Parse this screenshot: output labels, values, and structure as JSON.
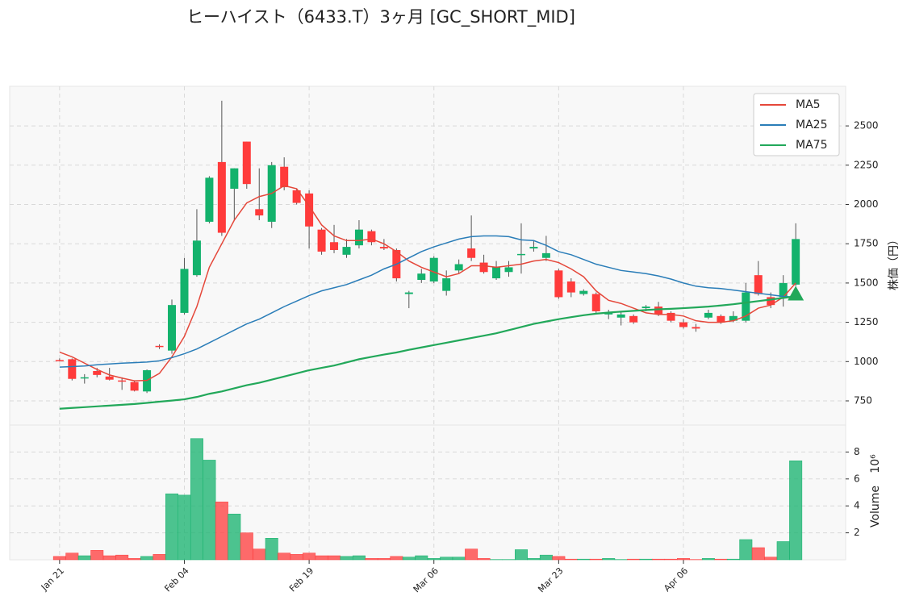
{
  "chart_data": {
    "type": "candlestick",
    "title": "ヒーハイスト（6433.T）3ヶ月 [GC_SHORT_MID]",
    "y_label": "株価（円）",
    "volume_label": "Volume",
    "volume_exponent": "10⁶",
    "xlim": [
      -4,
      63
    ],
    "xticks": [
      {
        "value": 0,
        "label": "Jan 21"
      },
      {
        "value": 10,
        "label": "Feb 04"
      },
      {
        "value": 20,
        "label": "Feb 19"
      },
      {
        "value": 30,
        "label": "Mar 06"
      },
      {
        "value": 40,
        "label": "Mar 23"
      },
      {
        "value": 50,
        "label": "Apr 06"
      }
    ],
    "ylim": [
      596,
      2752
    ],
    "yticks": [
      750,
      1000,
      1250,
      1500,
      1750,
      2000,
      2250,
      2500
    ],
    "volume_ylim": [
      0,
      10
    ],
    "volume_yticks": [
      2,
      4,
      6,
      8
    ],
    "grid": true,
    "up_color": "#13b26c",
    "down_color": "#ff3b3b",
    "legend_position": "upper right",
    "open": [
      1010,
      1015,
      895,
      940,
      905,
      880,
      870,
      810,
      1100,
      1070,
      1310,
      1550,
      1890,
      2270,
      2100,
      2400,
      1970,
      1890,
      2240,
      2090,
      2070,
      1840,
      1760,
      1680,
      1740,
      1830,
      1730,
      1710,
      1430,
      1520,
      1510,
      1450,
      1580,
      1720,
      1630,
      1530,
      1570,
      1680,
      1720,
      1660,
      1580,
      1510,
      1430,
      1430,
      1300,
      1280,
      1290,
      1340,
      1350,
      1310,
      1250,
      1220,
      1280,
      1290,
      1260,
      1260,
      1550,
      1410,
      1410,
      1490
    ],
    "high": [
      1020,
      1020,
      920,
      960,
      960,
      900,
      880,
      950,
      1110,
      1395,
      1660,
      1970,
      2180,
      2660,
      2230,
      2400,
      2230,
      2270,
      2300,
      2100,
      2090,
      1850,
      1870,
      1780,
      1900,
      1840,
      1780,
      1720,
      1450,
      1590,
      1670,
      1580,
      1650,
      1930,
      1680,
      1640,
      1640,
      1880,
      1770,
      1800,
      1590,
      1530,
      1460,
      1440,
      1330,
      1320,
      1300,
      1360,
      1380,
      1320,
      1270,
      1240,
      1330,
      1300,
      1320,
      1500,
      1640,
      1440,
      1550,
      1880
    ],
    "low": [
      1000,
      880,
      860,
      900,
      880,
      820,
      810,
      800,
      1080,
      1050,
      1300,
      1540,
      1880,
      1800,
      1900,
      2100,
      1900,
      1850,
      2090,
      2000,
      1720,
      1680,
      1690,
      1660,
      1720,
      1740,
      1710,
      1510,
      1340,
      1500,
      1500,
      1420,
      1560,
      1640,
      1560,
      1520,
      1540,
      1560,
      1700,
      1640,
      1400,
      1410,
      1420,
      1310,
      1270,
      1230,
      1240,
      1320,
      1290,
      1250,
      1210,
      1190,
      1270,
      1240,
      1250,
      1250,
      1420,
      1340,
      1350,
      1480
    ],
    "close": [
      1005,
      890,
      900,
      915,
      885,
      875,
      815,
      945,
      1095,
      1360,
      1590,
      1770,
      2170,
      1820,
      2230,
      2130,
      1930,
      2250,
      2110,
      2010,
      1860,
      1700,
      1710,
      1730,
      1840,
      1760,
      1720,
      1530,
      1440,
      1560,
      1660,
      1530,
      1620,
      1660,
      1570,
      1600,
      1600,
      1685,
      1730,
      1690,
      1410,
      1440,
      1450,
      1320,
      1310,
      1300,
      1250,
      1350,
      1300,
      1260,
      1220,
      1210,
      1310,
      1250,
      1290,
      1440,
      1430,
      1360,
      1500,
      1780
    ],
    "volume": [
      0.25,
      0.5,
      0.3,
      0.7,
      0.3,
      0.35,
      0.1,
      0.25,
      0.4,
      4.9,
      4.8,
      9.0,
      7.4,
      4.3,
      3.4,
      2.0,
      0.8,
      1.6,
      0.5,
      0.4,
      0.5,
      0.3,
      0.3,
      0.25,
      0.3,
      0.1,
      0.1,
      0.25,
      0.2,
      0.3,
      0.1,
      0.2,
      0.2,
      0.8,
      0.1,
      0.02,
      0.02,
      0.75,
      0.1,
      0.35,
      0.25,
      0.05,
      0.05,
      0.05,
      0.1,
      0.02,
      0.05,
      0.05,
      0.05,
      0.05,
      0.1,
      0.02,
      0.1,
      0.05,
      0.05,
      1.5,
      0.9,
      0.2,
      1.35,
      7.35
    ],
    "series": [
      {
        "name": "MA5",
        "color": "#e5473a",
        "values": [
          1060,
          1030,
          990,
          950,
          915,
          895,
          878,
          880,
          925,
          1030,
          1160,
          1350,
          1600,
          1750,
          1900,
          2010,
          2050,
          2070,
          2120,
          2100,
          1990,
          1870,
          1800,
          1770,
          1770,
          1780,
          1750,
          1700,
          1640,
          1600,
          1570,
          1540,
          1560,
          1610,
          1610,
          1600,
          1610,
          1620,
          1640,
          1650,
          1630,
          1590,
          1540,
          1450,
          1390,
          1370,
          1340,
          1310,
          1300,
          1300,
          1290,
          1260,
          1250,
          1250,
          1260,
          1290,
          1340,
          1360,
          1410,
          1500
        ]
      },
      {
        "name": "MA25",
        "color": "#2a7db8",
        "values": [
          965,
          968,
          972,
          980,
          985,
          990,
          993,
          997,
          1005,
          1025,
          1050,
          1080,
          1120,
          1160,
          1200,
          1240,
          1270,
          1310,
          1350,
          1385,
          1420,
          1450,
          1470,
          1490,
          1520,
          1550,
          1590,
          1620,
          1660,
          1700,
          1730,
          1755,
          1780,
          1795,
          1800,
          1800,
          1795,
          1775,
          1770,
          1740,
          1700,
          1680,
          1650,
          1620,
          1600,
          1580,
          1570,
          1560,
          1545,
          1525,
          1500,
          1480,
          1470,
          1465,
          1455,
          1445,
          1435,
          1425,
          1415,
          1410
        ]
      },
      {
        "name": "MA75",
        "color": "#22a85a",
        "values": [
          700,
          705,
          710,
          715,
          720,
          725,
          730,
          737,
          745,
          752,
          760,
          775,
          795,
          810,
          830,
          850,
          865,
          885,
          905,
          925,
          945,
          960,
          975,
          995,
          1015,
          1030,
          1045,
          1058,
          1075,
          1090,
          1105,
          1120,
          1135,
          1150,
          1165,
          1180,
          1200,
          1220,
          1240,
          1255,
          1270,
          1283,
          1295,
          1305,
          1312,
          1318,
          1323,
          1328,
          1333,
          1336,
          1340,
          1345,
          1350,
          1357,
          1365,
          1375,
          1385,
          1395,
          1405,
          1415
        ]
      }
    ],
    "signal": {
      "x": 59,
      "y": 1430,
      "color": "#22a85a"
    }
  }
}
